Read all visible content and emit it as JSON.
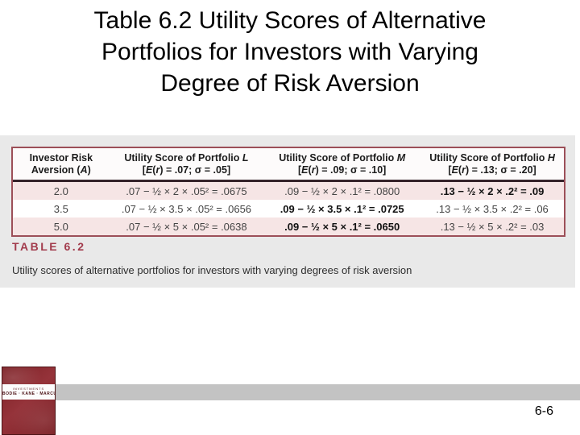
{
  "slide": {
    "title_lines": [
      "Table 6.2 Utility Scores of Alternative",
      "Portfolios for Investors with Varying",
      "Degree of Risk Aversion"
    ],
    "page_number": "6-6"
  },
  "figure": {
    "label": "TABLE 6.2",
    "caption": "Utility scores of alternative portfolios for investors with varying degrees of risk aversion"
  },
  "cover": {
    "small_text": "INVESTMENTS",
    "authors": "BODIE · KANE · MARCUS"
  },
  "table": {
    "columns": [
      {
        "line1": "Investor Risk",
        "line2_pre": "Aversion (",
        "line2_var": "A",
        "line2_post": ")"
      },
      {
        "title_pre": "Utility Score of Portfolio ",
        "title_var": "L",
        "sub_open": "[",
        "sub_e": "E",
        "sub_lp": "(",
        "sub_r": "r",
        "sub_rest": ") = .07; σ = .05]"
      },
      {
        "title_pre": "Utility Score of Portfolio ",
        "title_var": "M",
        "sub_open": "[",
        "sub_e": "E",
        "sub_lp": "(",
        "sub_r": "r",
        "sub_rest": ") = .09; σ = .10]"
      },
      {
        "title_pre": "Utility Score of Portfolio ",
        "title_var": "H",
        "sub_open": "[",
        "sub_e": "E",
        "sub_lp": "(",
        "sub_r": "r",
        "sub_rest": ") = .13; σ = .20]"
      }
    ],
    "rows": [
      {
        "a": "2.0",
        "l": ".07 − ½ × 2 × .05² = .0675",
        "m": ".09 − ½ × 2 × .1² = .0800",
        "h": ".13 − ½ × 2 × .2² = .09",
        "bold_cell": "h"
      },
      {
        "a": "3.5",
        "l": ".07 − ½ × 3.5 × .05² = .0656",
        "m": ".09 − ½ × 3.5 × .1² = .0725",
        "h": ".13 − ½ × 3.5 × .2² = .06",
        "bold_cell": "m"
      },
      {
        "a": "5.0",
        "l": ".07 − ½ × 5 × .05² = .0638",
        "m": ".09 − ½ × 5 × .1² = .0650",
        "h": ".13 − ½ × 5 × .2² = .03",
        "bold_cell": "m"
      }
    ]
  }
}
